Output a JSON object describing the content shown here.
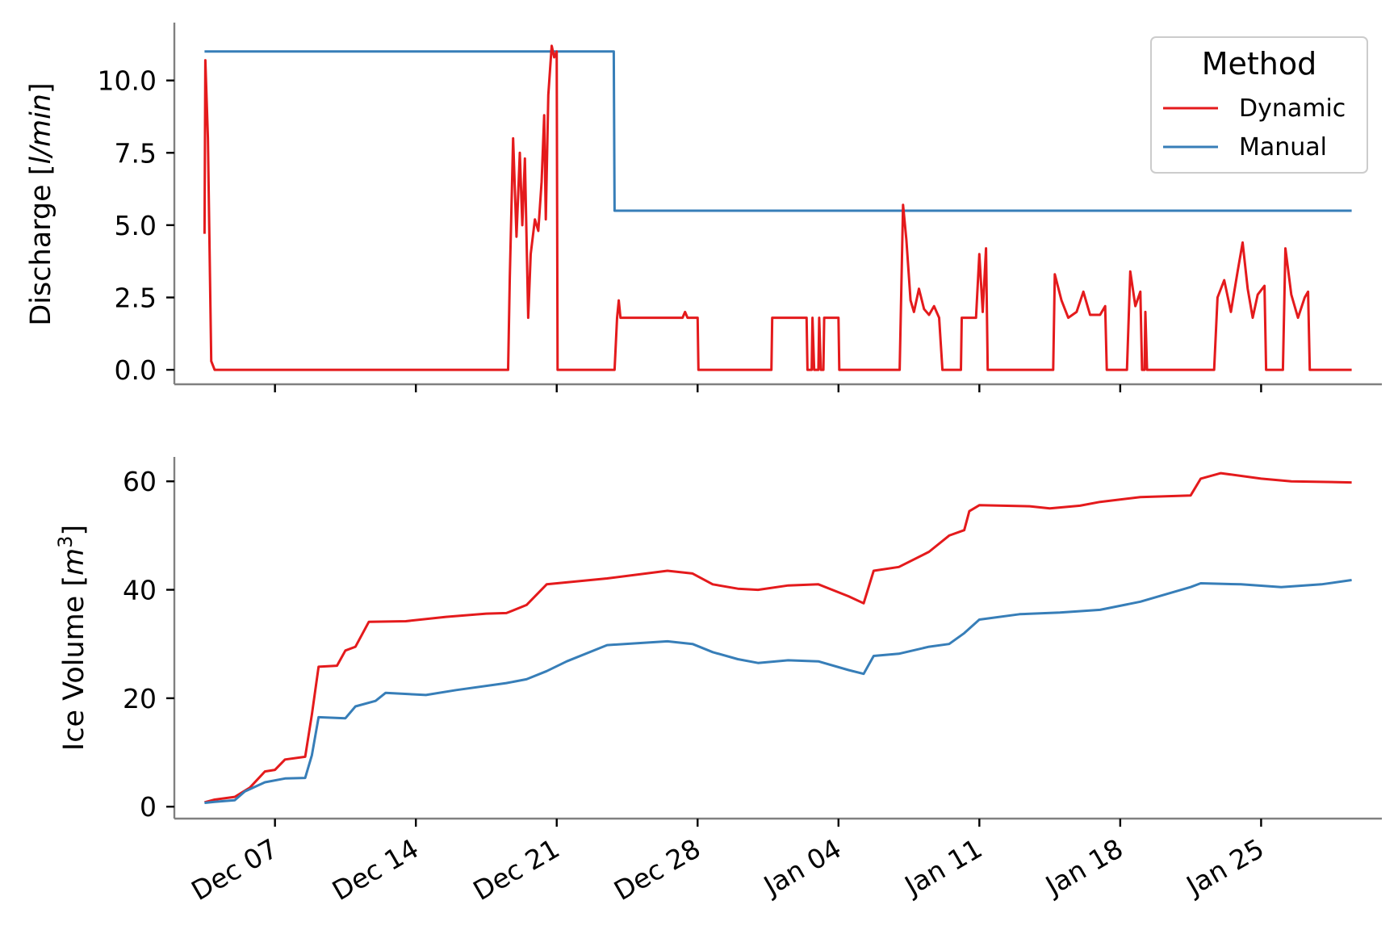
{
  "chart_data": [
    {
      "type": "line",
      "ylabel_text": "Discharge [",
      "ylabel_unit": "l/min",
      "ylabel_end": "]",
      "ylim": [
        -0.5,
        12
      ],
      "yticks": [
        0,
        2.5,
        5,
        7.5,
        10
      ],
      "ytick_labels": [
        "0.0",
        "2.5",
        "5.0",
        "7.5",
        "10.0"
      ],
      "legend": {
        "title": "Method",
        "placement": "top-right",
        "entries": [
          "Dynamic",
          "Manual"
        ]
      },
      "series": [
        {
          "name": "Dynamic",
          "color": "#e41a1c",
          "points": [
            [
              "2023-12-03 12:00",
              4.7
            ],
            [
              "2023-12-03 13:00",
              10.7
            ],
            [
              "2023-12-03 16:00",
              8.0
            ],
            [
              "2023-12-03 20:00",
              0.3
            ],
            [
              "2023-12-04 00:00",
              0.0
            ],
            [
              "2023-12-18 14:00",
              0.0
            ],
            [
              "2023-12-18 16:00",
              3.2
            ],
            [
              "2023-12-18 20:00",
              8.0
            ],
            [
              "2023-12-19 00:00",
              4.6
            ],
            [
              "2023-12-19 04:00",
              7.5
            ],
            [
              "2023-12-19 07:00",
              5.0
            ],
            [
              "2023-12-19 10:00",
              7.3
            ],
            [
              "2023-12-19 14:00",
              1.8
            ],
            [
              "2023-12-19 17:00",
              4.0
            ],
            [
              "2023-12-19 22:00",
              5.2
            ],
            [
              "2023-12-20 02:00",
              4.8
            ],
            [
              "2023-12-20 06:00",
              6.5
            ],
            [
              "2023-12-20 09:00",
              8.8
            ],
            [
              "2023-12-20 11:00",
              5.2
            ],
            [
              "2023-12-20 14:00",
              9.5
            ],
            [
              "2023-12-20 18:00",
              11.2
            ],
            [
              "2023-12-20 21:00",
              10.8
            ],
            [
              "2023-12-21 00:00",
              11.0
            ],
            [
              "2023-12-21 01:00",
              0.0
            ],
            [
              "2023-12-23 21:00",
              0.0
            ],
            [
              "2023-12-24 00:00",
              1.8
            ],
            [
              "2023-12-24 02:00",
              2.4
            ],
            [
              "2023-12-24 04:00",
              1.8
            ],
            [
              "2023-12-27 06:00",
              1.8
            ],
            [
              "2023-12-27 09:00",
              2.0
            ],
            [
              "2023-12-27 12:00",
              1.8
            ],
            [
              "2023-12-28 00:00",
              1.8
            ],
            [
              "2023-12-28 01:00",
              0.0
            ],
            [
              "2023-12-31 16:00",
              0.0
            ],
            [
              "2023-12-31 17:00",
              1.8
            ],
            [
              "2024-01-02 10:00",
              1.8
            ],
            [
              "2024-01-02 11:00",
              0.0
            ],
            [
              "2024-01-02 16:00",
              0.0
            ],
            [
              "2024-01-02 17:00",
              1.8
            ],
            [
              "2024-01-02 19:00",
              0.0
            ],
            [
              "2024-01-03 00:00",
              0.0
            ],
            [
              "2024-01-03 01:00",
              1.8
            ],
            [
              "2024-01-03 03:00",
              0.0
            ],
            [
              "2024-01-03 06:00",
              0.0
            ],
            [
              "2024-01-03 07:00",
              1.8
            ],
            [
              "2024-01-04 00:00",
              1.8
            ],
            [
              "2024-01-04 01:00",
              0.0
            ],
            [
              "2024-01-07 01:00",
              0.0
            ],
            [
              "2024-01-07 05:00",
              5.7
            ],
            [
              "2024-01-07 09:00",
              4.5
            ],
            [
              "2024-01-07 14:00",
              2.4
            ],
            [
              "2024-01-07 18:00",
              2.0
            ],
            [
              "2024-01-08 00:00",
              2.8
            ],
            [
              "2024-01-08 06:00",
              2.1
            ],
            [
              "2024-01-08 12:00",
              1.9
            ],
            [
              "2024-01-08 18:00",
              2.2
            ],
            [
              "2024-01-09 00:00",
              1.8
            ],
            [
              "2024-01-09 04:00",
              0.0
            ],
            [
              "2024-01-10 02:00",
              0.0
            ],
            [
              "2024-01-10 03:00",
              1.8
            ],
            [
              "2024-01-10 20:00",
              1.8
            ],
            [
              "2024-01-11 00:00",
              4.0
            ],
            [
              "2024-01-11 04:00",
              2.0
            ],
            [
              "2024-01-11 08:00",
              4.2
            ],
            [
              "2024-01-11 10:00",
              0.0
            ],
            [
              "2024-01-14 16:00",
              0.0
            ],
            [
              "2024-01-14 18:00",
              3.3
            ],
            [
              "2024-01-15 02:00",
              2.4
            ],
            [
              "2024-01-15 10:00",
              1.8
            ],
            [
              "2024-01-15 20:00",
              2.0
            ],
            [
              "2024-01-16 04:00",
              2.7
            ],
            [
              "2024-01-16 12:00",
              1.9
            ],
            [
              "2024-01-17 00:00",
              1.9
            ],
            [
              "2024-01-17 06:00",
              2.2
            ],
            [
              "2024-01-17 08:00",
              0.0
            ],
            [
              "2024-01-18 08:00",
              0.0
            ],
            [
              "2024-01-18 12:00",
              3.4
            ],
            [
              "2024-01-18 18:00",
              2.2
            ],
            [
              "2024-01-19 00:00",
              2.7
            ],
            [
              "2024-01-19 02:00",
              0.0
            ],
            [
              "2024-01-19 05:00",
              0.0
            ],
            [
              "2024-01-19 06:00",
              2.0
            ],
            [
              "2024-01-19 08:00",
              0.0
            ],
            [
              "2024-01-22 16:00",
              0.0
            ],
            [
              "2024-01-22 20:00",
              2.5
            ],
            [
              "2024-01-23 04:00",
              3.1
            ],
            [
              "2024-01-23 12:00",
              2.0
            ],
            [
              "2024-01-23 20:00",
              3.4
            ],
            [
              "2024-01-24 02:00",
              4.4
            ],
            [
              "2024-01-24 08:00",
              2.8
            ],
            [
              "2024-01-24 14:00",
              1.8
            ],
            [
              "2024-01-24 20:00",
              2.6
            ],
            [
              "2024-01-25 04:00",
              2.9
            ],
            [
              "2024-01-25 06:00",
              0.0
            ],
            [
              "2024-01-26 02:00",
              0.0
            ],
            [
              "2024-01-26 05:00",
              4.2
            ],
            [
              "2024-01-26 12:00",
              2.6
            ],
            [
              "2024-01-26 20:00",
              1.8
            ],
            [
              "2024-01-27 04:00",
              2.5
            ],
            [
              "2024-01-27 08:00",
              2.7
            ],
            [
              "2024-01-27 10:00",
              0.0
            ],
            [
              "2024-01-29 12:00",
              0.0
            ]
          ]
        },
        {
          "name": "Manual",
          "color": "#377eb8",
          "points": [
            [
              "2023-12-03 12:00",
              11.0
            ],
            [
              "2023-12-23 20:00",
              11.0
            ],
            [
              "2023-12-23 21:00",
              5.5
            ],
            [
              "2024-01-29 12:00",
              5.5
            ]
          ]
        }
      ]
    },
    {
      "type": "line",
      "ylabel_text": "Ice Volume [",
      "ylabel_unit": "m",
      "ylabel_sup": "3",
      "ylabel_end": "]",
      "ylim": [
        -2.2,
        64.5
      ],
      "yticks": [
        0,
        20,
        40,
        60
      ],
      "ytick_labels": [
        "0",
        "20",
        "40",
        "60"
      ],
      "series": [
        {
          "name": "Dynamic",
          "color": "#e41a1c",
          "points": [
            [
              "2023-12-03 12:00",
              0.8
            ],
            [
              "2023-12-04 00:00",
              1.3
            ],
            [
              "2023-12-05 00:00",
              1.8
            ],
            [
              "2023-12-05 18:00",
              3.5
            ],
            [
              "2023-12-06 12:00",
              6.5
            ],
            [
              "2023-12-07 00:00",
              6.8
            ],
            [
              "2023-12-07 12:00",
              8.7
            ],
            [
              "2023-12-08 12:00",
              9.2
            ],
            [
              "2023-12-08 20:00",
              17.0
            ],
            [
              "2023-12-09 04:00",
              25.8
            ],
            [
              "2023-12-10 02:00",
              26.0
            ],
            [
              "2023-12-10 12:00",
              28.8
            ],
            [
              "2023-12-11 00:00",
              29.5
            ],
            [
              "2023-12-11 16:00",
              34.1
            ],
            [
              "2023-12-13 12:00",
              34.2
            ],
            [
              "2023-12-15 12:00",
              35.0
            ],
            [
              "2023-12-17 12:00",
              35.6
            ],
            [
              "2023-12-18 12:00",
              35.7
            ],
            [
              "2023-12-19 12:00",
              37.2
            ],
            [
              "2023-12-20 12:00",
              41.0
            ],
            [
              "2023-12-23 12:00",
              42.1
            ],
            [
              "2023-12-26 12:00",
              43.5
            ],
            [
              "2023-12-27 18:00",
              43.0
            ],
            [
              "2023-12-28 18:00",
              41.0
            ],
            [
              "2023-12-30 00:00",
              40.2
            ],
            [
              "2023-12-31 00:00",
              40.0
            ],
            [
              "2024-01-01 12:00",
              40.8
            ],
            [
              "2024-01-03 00:00",
              41.0
            ],
            [
              "2024-01-04 12:00",
              38.8
            ],
            [
              "2024-01-05 06:00",
              37.5
            ],
            [
              "2024-01-05 18:00",
              43.5
            ],
            [
              "2024-01-07 00:00",
              44.2
            ],
            [
              "2024-01-08 12:00",
              47.0
            ],
            [
              "2024-01-09 12:00",
              50.0
            ],
            [
              "2024-01-10 06:00",
              51.0
            ],
            [
              "2024-01-10 12:00",
              54.5
            ],
            [
              "2024-01-11 00:00",
              55.6
            ],
            [
              "2024-01-13 12:00",
              55.4
            ],
            [
              "2024-01-14 12:00",
              55.0
            ],
            [
              "2024-01-16 00:00",
              55.5
            ],
            [
              "2024-01-17 00:00",
              56.2
            ],
            [
              "2024-01-19 00:00",
              57.1
            ],
            [
              "2024-01-21 12:00",
              57.4
            ],
            [
              "2024-01-22 00:00",
              60.5
            ],
            [
              "2024-01-23 00:00",
              61.5
            ],
            [
              "2024-01-25 00:00",
              60.5
            ],
            [
              "2024-01-26 12:00",
              60.0
            ],
            [
              "2024-01-29 12:00",
              59.8
            ]
          ]
        },
        {
          "name": "Manual",
          "color": "#377eb8",
          "points": [
            [
              "2023-12-03 12:00",
              0.7
            ],
            [
              "2023-12-04 00:00",
              0.9
            ],
            [
              "2023-12-05 00:00",
              1.2
            ],
            [
              "2023-12-05 12:00",
              2.8
            ],
            [
              "2023-12-06 12:00",
              4.5
            ],
            [
              "2023-12-07 12:00",
              5.2
            ],
            [
              "2023-12-08 12:00",
              5.3
            ],
            [
              "2023-12-08 20:00",
              9.5
            ],
            [
              "2023-12-09 04:00",
              16.5
            ],
            [
              "2023-12-10 12:00",
              16.3
            ],
            [
              "2023-12-11 00:00",
              18.5
            ],
            [
              "2023-12-12 00:00",
              19.5
            ],
            [
              "2023-12-12 12:00",
              21.0
            ],
            [
              "2023-12-14 12:00",
              20.6
            ],
            [
              "2023-12-16 00:00",
              21.5
            ],
            [
              "2023-12-18 12:00",
              22.8
            ],
            [
              "2023-12-19 12:00",
              23.5
            ],
            [
              "2023-12-20 12:00",
              25.0
            ],
            [
              "2023-12-21 12:00",
              26.8
            ],
            [
              "2023-12-23 12:00",
              29.8
            ],
            [
              "2023-12-26 12:00",
              30.5
            ],
            [
              "2023-12-27 18:00",
              30.0
            ],
            [
              "2023-12-28 18:00",
              28.5
            ],
            [
              "2023-12-30 00:00",
              27.2
            ],
            [
              "2023-12-31 00:00",
              26.5
            ],
            [
              "2024-01-01 12:00",
              27.0
            ],
            [
              "2024-01-03 00:00",
              26.8
            ],
            [
              "2024-01-04 12:00",
              25.2
            ],
            [
              "2024-01-05 06:00",
              24.5
            ],
            [
              "2024-01-05 18:00",
              27.8
            ],
            [
              "2024-01-07 00:00",
              28.2
            ],
            [
              "2024-01-08 12:00",
              29.5
            ],
            [
              "2024-01-09 12:00",
              30.0
            ],
            [
              "2024-01-10 06:00",
              32.0
            ],
            [
              "2024-01-11 00:00",
              34.5
            ],
            [
              "2024-01-13 00:00",
              35.5
            ],
            [
              "2024-01-15 00:00",
              35.8
            ],
            [
              "2024-01-17 00:00",
              36.3
            ],
            [
              "2024-01-19 00:00",
              37.8
            ],
            [
              "2024-01-21 12:00",
              40.5
            ],
            [
              "2024-01-22 00:00",
              41.2
            ],
            [
              "2024-01-24 00:00",
              41.0
            ],
            [
              "2024-01-26 00:00",
              40.5
            ],
            [
              "2024-01-28 00:00",
              41.0
            ],
            [
              "2024-01-29 12:00",
              41.8
            ]
          ]
        }
      ]
    }
  ],
  "x_axis": {
    "xlim": [
      "2023-12-02 00:00",
      "2024-01-31 00:00"
    ],
    "ticks": [
      "2023-12-07",
      "2023-12-14",
      "2023-12-21",
      "2023-12-28",
      "2024-01-04",
      "2024-01-11",
      "2024-01-18",
      "2024-01-25"
    ],
    "tick_labels": [
      "Dec 07",
      "Dec 14",
      "Dec 21",
      "Dec 28",
      "Jan 04",
      "Jan 11",
      "Jan 18",
      "Jan 25"
    ]
  },
  "grid": false
}
